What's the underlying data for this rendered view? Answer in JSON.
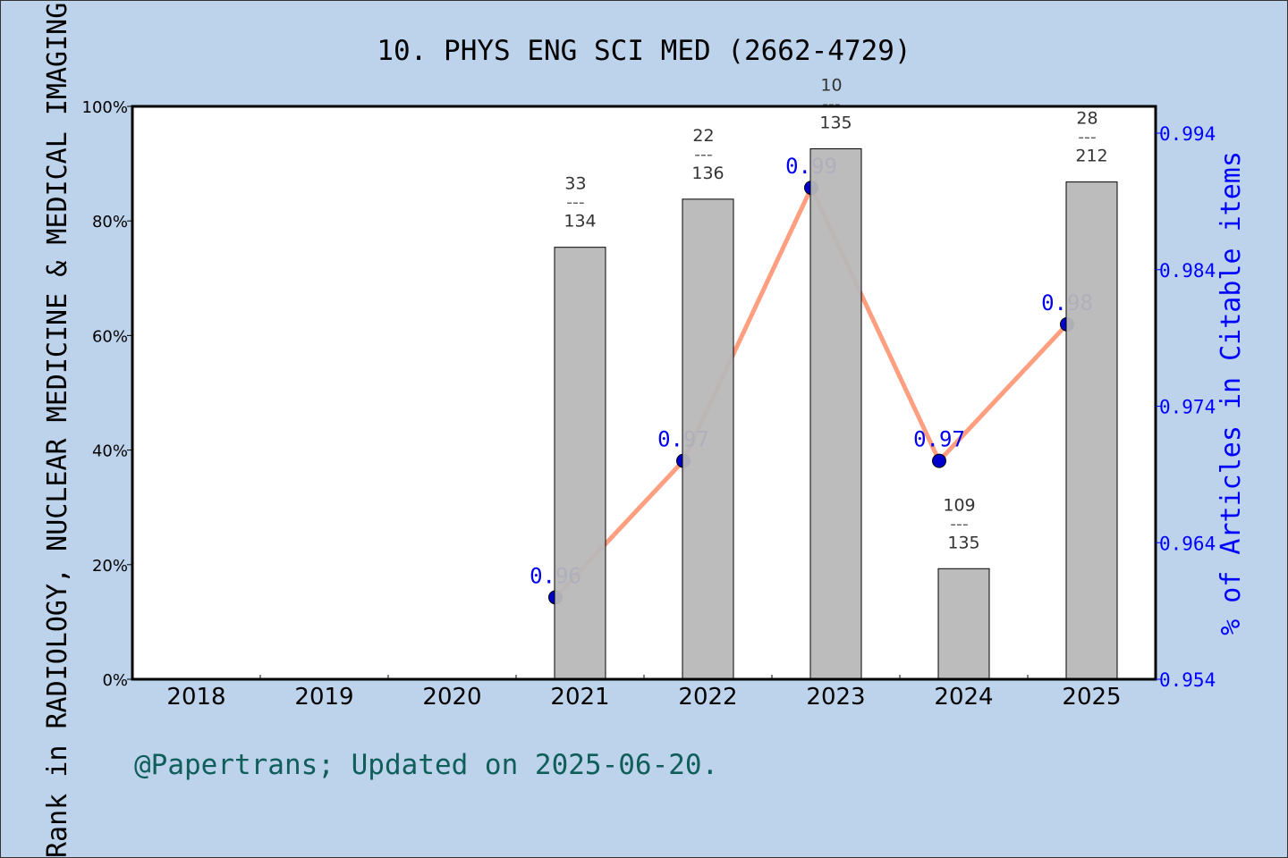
{
  "chart_data": {
    "type": "bar+line",
    "title": "10. PHYS ENG SCI MED (2662-4729)",
    "ylabel_left": "Rank in RADIOLOGY, NUCLEAR MEDICINE & MEDICAL IMAGING",
    "ylabel_right": "% of Articles in Citable items",
    "categories": [
      "2018",
      "2019",
      "2020",
      "2021",
      "2022",
      "2023",
      "2024",
      "2025"
    ],
    "left_axis": {
      "ylim": [
        0,
        100
      ],
      "ticks": [
        "0%",
        "20%",
        "40%",
        "60%",
        "80%",
        "100%"
      ]
    },
    "right_axis": {
      "ylim": [
        0.954,
        0.994
      ],
      "ticks": [
        "0.954",
        "0.964",
        "0.974",
        "0.984",
        "0.994"
      ]
    },
    "bars": [
      {
        "year": "2021",
        "value": 75.4,
        "rank": "33",
        "total": "134"
      },
      {
        "year": "2022",
        "value": 83.8,
        "rank": "22",
        "total": "136"
      },
      {
        "year": "2023",
        "value": 92.6,
        "rank": "10",
        "total": "135"
      },
      {
        "year": "2024",
        "value": 19.3,
        "rank": "109",
        "total": "135"
      },
      {
        "year": "2025",
        "value": 86.8,
        "rank": "28",
        "total": "212"
      }
    ],
    "line": [
      {
        "year": "2021",
        "value": 0.96,
        "label": "0.96"
      },
      {
        "year": "2022",
        "value": 0.97,
        "label": "0.97"
      },
      {
        "year": "2023",
        "value": 0.99,
        "label": "0.99"
      },
      {
        "year": "2024",
        "value": 0.97,
        "label": "0.97"
      },
      {
        "year": "2025",
        "value": 0.98,
        "label": "0.98"
      }
    ],
    "colors": {
      "background": "#bdd3ec",
      "bar": "#b8b8b8",
      "line": "#ff9f80",
      "marker": "#0000cc",
      "right_axis": "#0000ff",
      "footer": "#0f5e5a"
    },
    "grid": false
  },
  "footer": "@Papertrans; Updated on 2025-06-20."
}
